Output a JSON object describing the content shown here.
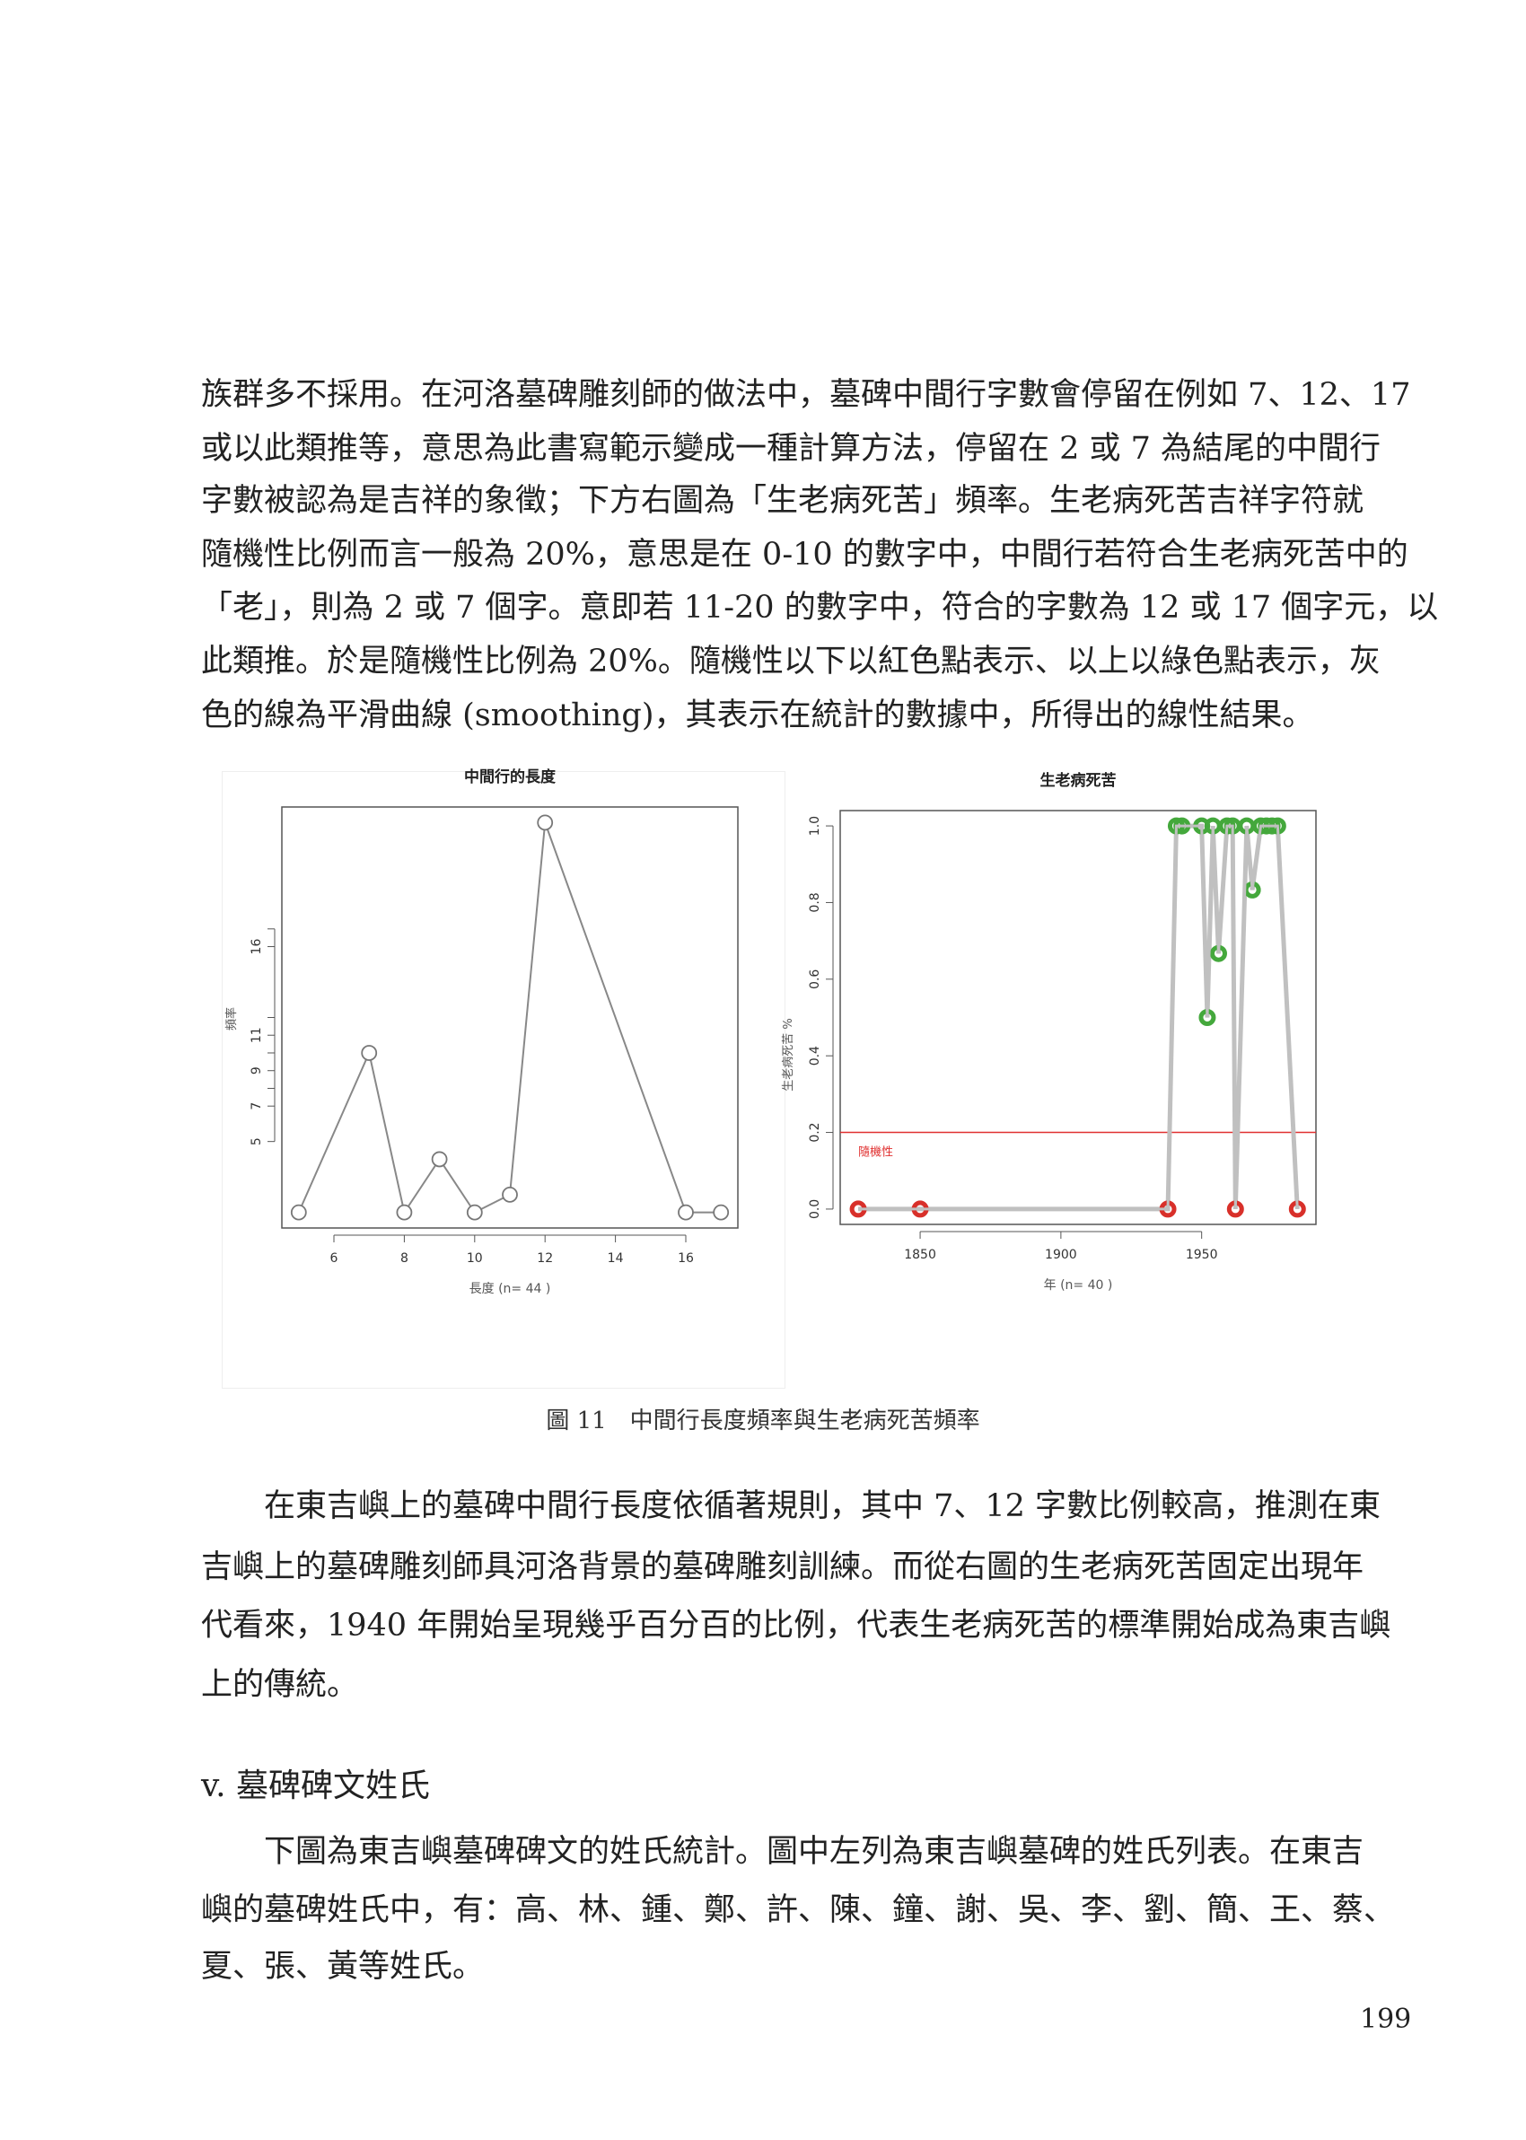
{
  "paragraph1": [
    "族群多不採用。在河洛墓碑雕刻師的做法中，墓碑中間行字數會停留在例如 7、12、17",
    "或以此類推等，意思為此書寫範示變成一種計算方法，停留在 2 或 7 為結尾的中間行",
    "字數被認為是吉祥的象徵；下方右圖為「生老病死苦」頻率。生老病死苦吉祥字符就",
    "隨機性比例而言一般為 20%，意思是在 0-10 的數字中，中間行若符合生老病死苦中的",
    "「老」，則為 2 或 7 個字。意即若 11-20 的數字中，符合的字數為 12 或 17 個字元，以",
    "此類推。於是隨機性比例為 20%。隨機性以下以紅色點表示、以上以綠色點表示，灰",
    "色的線為平滑曲線 (smoothing)，其表示在統計的數據中，所得出的線性結果。"
  ],
  "figure_caption": "圖 11　中間行長度頻率與生老病死苦頻率",
  "paragraph2": [
    "　　在東吉嶼上的墓碑中間行長度依循著規則，其中 7、12 字數比例較高，推測在東",
    "吉嶼上的墓碑雕刻師具河洛背景的墓碑雕刻訓練。而從右圖的生老病死苦固定出現年",
    "代看來，1940 年開始呈現幾乎百分百的比例，代表生老病死苦的標準開始成為東吉嶼",
    "上的傳統。"
  ],
  "section_heading": "v. 墓碑碑文姓氏",
  "paragraph3": [
    "　　下圖為東吉嶼墓碑碑文的姓氏統計。圖中左列為東吉嶼墓碑的姓氏列表。在東吉",
    "嶼的墓碑姓氏中，有：高、林、鍾、鄭、許、陳、鐘、謝、吳、李、劉、簡、王、蔡、",
    "夏、張、黃等姓氏。"
  ],
  "page_number": "199",
  "chart_data": [
    {
      "type": "line",
      "title": "中間行的長度",
      "xlabel": "長度 (n= 44 )",
      "ylabel": "頻率",
      "x": [
        5,
        7,
        8,
        9,
        10,
        11,
        12,
        16,
        17
      ],
      "y": [
        1,
        10,
        1,
        4,
        1,
        2,
        23,
        1,
        1
      ],
      "xlim": [
        4.52,
        17.48
      ],
      "ylim": [
        0.12,
        23.88
      ],
      "xticks": [
        6,
        8,
        10,
        12,
        14,
        16
      ],
      "yticks": [
        5,
        7,
        8,
        9,
        10,
        11,
        12,
        16,
        17
      ],
      "ytick_labels": [
        "5",
        "7",
        "9",
        "11",
        "16"
      ],
      "ytick_label_values": [
        5,
        7,
        9,
        11,
        16
      ],
      "marker": "open-circle",
      "line_color": "#888888",
      "grid": false
    },
    {
      "type": "line",
      "title": "生老病死苦",
      "xlabel": "年 (n= 40 )",
      "ylabel": "生老病死苦 %",
      "x": [
        1828,
        1850,
        1938,
        1941,
        1943,
        1950,
        1952,
        1954,
        1956,
        1959,
        1961,
        1962,
        1966,
        1968,
        1971,
        1973,
        1975,
        1977,
        1984
      ],
      "y": [
        0,
        0,
        0,
        1,
        1,
        1,
        0.5,
        1,
        0.667,
        1,
        1,
        0,
        1,
        0.833,
        1,
        1,
        1,
        1,
        0
      ],
      "xlim": [
        1821.6,
        1990.6
      ],
      "ylim": [
        -0.04,
        1.04
      ],
      "xticks": [
        1850,
        1900,
        1950
      ],
      "yticks": [
        0.0,
        0.2,
        0.4,
        0.6,
        0.8,
        1.0
      ],
      "ytick_labels": [
        "0.0",
        "0.2",
        "0.4",
        "0.6",
        "0.8",
        "1.0"
      ],
      "reference_line": {
        "y": 0.2,
        "label": "隨機性",
        "color": "#e03030"
      },
      "colors": {
        "line": "#c0c0c0",
        "below": "#d8302a",
        "above": "#44a83c"
      },
      "grid": false
    }
  ]
}
